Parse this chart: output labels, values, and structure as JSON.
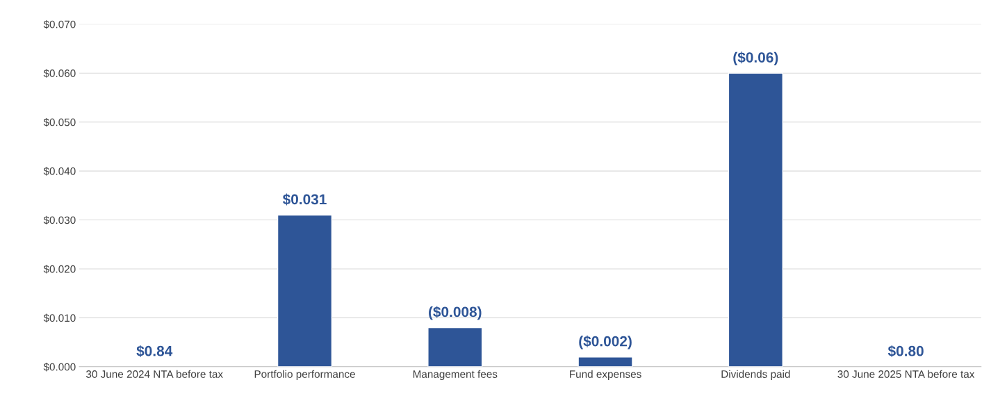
{
  "chart_data": {
    "type": "bar",
    "categories": [
      "30 June 2024 NTA before tax",
      "Portfolio performance",
      "Management fees",
      "Fund expenses",
      "Dividends paid",
      "30 June 2025 NTA before tax"
    ],
    "values": [
      null,
      0.031,
      0.008,
      0.002,
      0.06,
      null
    ],
    "value_labels": [
      "$0.84",
      "$0.031",
      "($0.008)",
      "($0.002)",
      "($0.06)",
      "$0.80"
    ],
    "color": "#2e5597",
    "ylim": [
      0,
      0.07
    ],
    "yticks": [
      {
        "value": 0,
        "label": "$0.000"
      },
      {
        "value": 0.01,
        "label": "$0.010"
      },
      {
        "value": 0.02,
        "label": "$0.020"
      },
      {
        "value": 0.03,
        "label": "$0.030"
      },
      {
        "value": 0.04,
        "label": "$0.040"
      },
      {
        "value": 0.05,
        "label": "$0.050"
      },
      {
        "value": 0.06,
        "label": "$0.060"
      },
      {
        "value": 0.07,
        "label": "$0.070"
      }
    ],
    "grid": "y",
    "legend": false
  }
}
